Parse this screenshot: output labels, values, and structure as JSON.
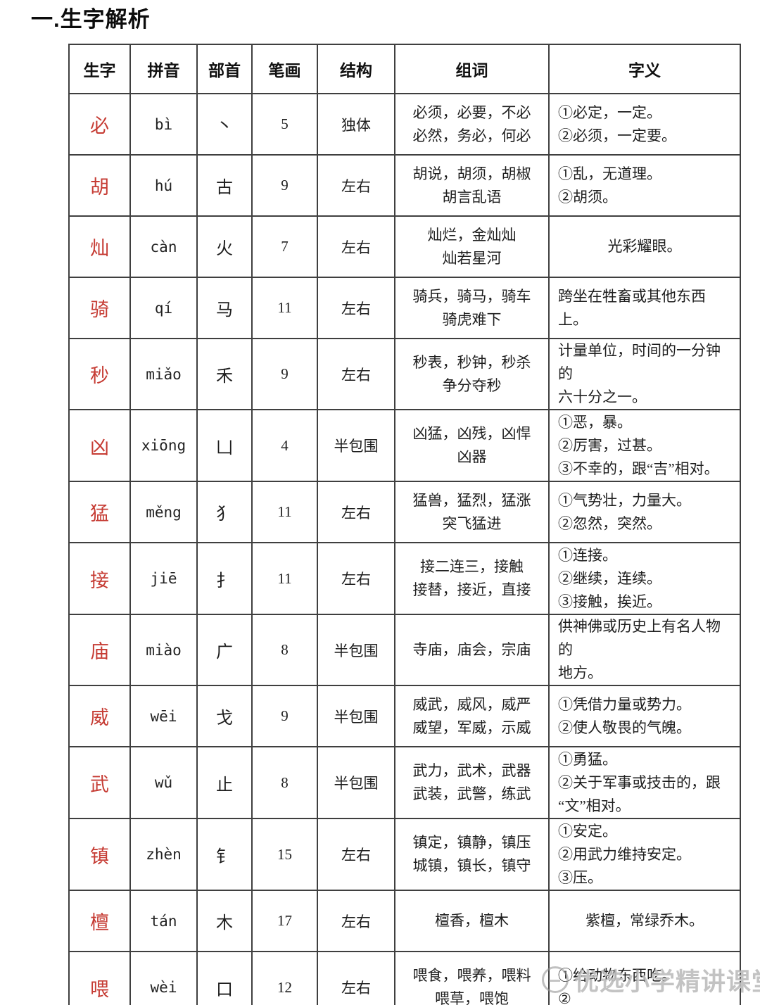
{
  "page": {
    "title": "一.生字解析"
  },
  "table": {
    "headers": [
      "生字",
      "拼音",
      "部首",
      "笔画",
      "结构",
      "组词",
      "字义"
    ],
    "rows": [
      {
        "char": "必",
        "pinyin": "bì",
        "radical": "丶",
        "strokes": "5",
        "structure": "独体",
        "words": "必须，必要，不必\n必然，务必，何必",
        "meaning": "①必定，一定。\n②必须，一定要。",
        "tall": false,
        "meaning_align": "left"
      },
      {
        "char": "胡",
        "pinyin": "hú",
        "radical": "古",
        "strokes": "9",
        "structure": "左右",
        "words": "胡说，胡须，胡椒\n胡言乱语",
        "meaning": "①乱，无道理。\n②胡须。",
        "tall": false,
        "meaning_align": "left"
      },
      {
        "char": "灿",
        "pinyin": "càn",
        "radical": "火",
        "strokes": "7",
        "structure": "左右",
        "words": "灿烂，金灿灿\n灿若星河",
        "meaning": "光彩耀眼。",
        "tall": false,
        "meaning_align": "center"
      },
      {
        "char": "骑",
        "pinyin": "qí",
        "radical": "马",
        "strokes": "11",
        "structure": "左右",
        "words": "骑兵，骑马，骑车\n骑虎难下",
        "meaning": "跨坐在牲畜或其他东西上。",
        "tall": false,
        "meaning_align": "left"
      },
      {
        "char": "秒",
        "pinyin": "miǎo",
        "radical": "禾",
        "strokes": "9",
        "structure": "左右",
        "words": "秒表，秒钟，秒杀\n争分夺秒",
        "meaning": "计量单位，时间的一分钟的\n六十分之一。",
        "tall": false,
        "meaning_align": "left"
      },
      {
        "char": "凶",
        "pinyin": "xiōng",
        "radical": "凵",
        "strokes": "4",
        "structure": "半包围",
        "words": "凶猛，凶残，凶悍\n凶器",
        "meaning": "①恶，暴。\n②厉害，过甚。\n③不幸的，跟“吉”相对。",
        "tall": true,
        "meaning_align": "left"
      },
      {
        "char": "猛",
        "pinyin": "měng",
        "radical": "犭",
        "strokes": "11",
        "structure": "左右",
        "words": "猛兽，猛烈，猛涨\n突飞猛进",
        "meaning": "①气势壮，力量大。\n②忽然，突然。",
        "tall": false,
        "meaning_align": "left"
      },
      {
        "char": "接",
        "pinyin": "jiē",
        "radical": "扌",
        "strokes": "11",
        "structure": "左右",
        "words": "接二连三，接触\n接替，接近，直接",
        "meaning": "①连接。\n②继续，连续。\n③接触，挨近。",
        "tall": true,
        "meaning_align": "left"
      },
      {
        "char": "庙",
        "pinyin": "miào",
        "radical": "广",
        "strokes": "8",
        "structure": "半包围",
        "words": "寺庙，庙会，宗庙",
        "meaning": "供神佛或历史上有名人物的\n地方。",
        "tall": false,
        "meaning_align": "left"
      },
      {
        "char": "威",
        "pinyin": "wēi",
        "radical": "戈",
        "strokes": "9",
        "structure": "半包围",
        "words": "威武，威风，威严\n威望，军威，示威",
        "meaning": "①凭借力量或势力。\n②使人敬畏的气魄。",
        "tall": false,
        "meaning_align": "left"
      },
      {
        "char": "武",
        "pinyin": "wǔ",
        "radical": "止",
        "strokes": "8",
        "structure": "半包围",
        "words": "武力，武术，武器\n武装，武警，练武",
        "meaning": "①勇猛。\n②关于军事或技击的，跟\n“文”相对。",
        "tall": true,
        "meaning_align": "left"
      },
      {
        "char": "镇",
        "pinyin": "zhèn",
        "radical": "钅",
        "strokes": "15",
        "structure": "左右",
        "words": "镇定，镇静，镇压\n城镇，镇长，镇守",
        "meaning": "①安定。\n②用武力维持安定。\n③压。",
        "tall": true,
        "meaning_align": "left"
      },
      {
        "char": "檀",
        "pinyin": "tán",
        "radical": "木",
        "strokes": "17",
        "structure": "左右",
        "words": "檀香，檀木",
        "meaning": "紫檀，常绿乔木。",
        "tall": false,
        "meaning_align": "center"
      },
      {
        "char": "喂",
        "pinyin": "wèi",
        "radical": "口",
        "strokes": "12",
        "structure": "左右",
        "words": "喂食，喂养，喂料\n喂草，喂饱",
        "meaning": "①给动物东西吃。\n②",
        "tall": true,
        "meaning_align": "left"
      }
    ]
  },
  "watermark": {
    "text": "优选小学精讲课堂"
  }
}
